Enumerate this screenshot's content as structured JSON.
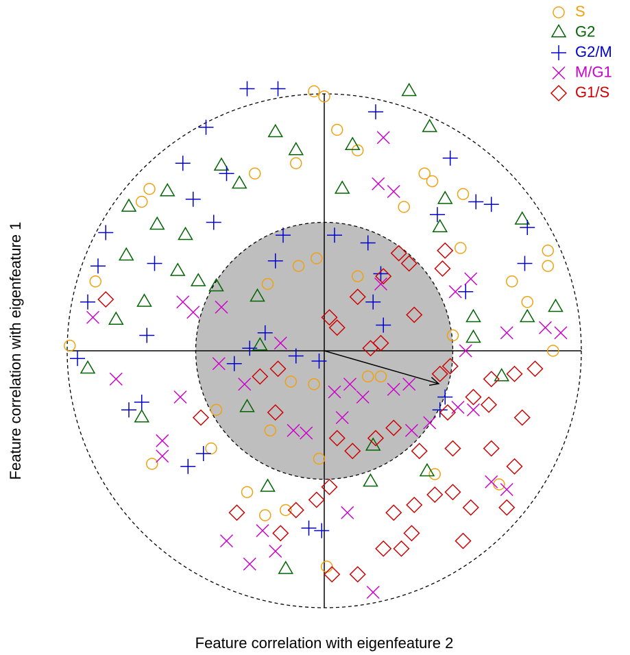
{
  "chart_data": {
    "type": "scatter",
    "x_label": "Feature correlation with eigenfeature 2",
    "y_label": "Feature correlation with eigenfeature 1",
    "xlim": [
      -1.05,
      1.05
    ],
    "ylim": [
      -1.05,
      1.05
    ],
    "outer_radius": 1,
    "inner_radius": 0.5,
    "inner_fill": "#bebebe",
    "arrow": {
      "x": 0.445,
      "y": -0.128
    },
    "legend": "top-right",
    "series": [
      {
        "name": "S",
        "color": "#f0a010",
        "marker": "circle",
        "x": [
          -0.04,
          0.0,
          0.05,
          0.13,
          -0.11,
          -0.27,
          0.39,
          0.42,
          0.54,
          0.31,
          -0.71,
          -0.68,
          0.87,
          0.87,
          0.73,
          0.79,
          0.5,
          0.89,
          -0.99,
          0.17,
          0.22,
          -0.13,
          -0.04,
          -0.42,
          -0.21,
          -0.02,
          -0.44,
          -0.67,
          0.43,
          0.68,
          -0.3,
          -0.23,
          0.01,
          -0.15,
          -0.89,
          -0.22,
          -0.03,
          0.13,
          -0.1,
          0.53
        ],
        "y": [
          1.01,
          0.99,
          0.86,
          0.78,
          0.73,
          0.69,
          0.69,
          0.66,
          0.61,
          0.56,
          0.58,
          0.63,
          0.39,
          0.33,
          0.27,
          0.19,
          0.06,
          0.0,
          0.02,
          -0.1,
          -0.1,
          -0.12,
          -0.13,
          -0.23,
          -0.31,
          -0.42,
          -0.38,
          -0.44,
          -0.48,
          -0.52,
          -0.55,
          -0.64,
          -0.84,
          -0.62,
          0.27,
          0.26,
          0.36,
          0.29,
          0.33,
          0.4
        ]
      },
      {
        "name": "G2",
        "color": "#006400",
        "marker": "triangle",
        "x": [
          0.33,
          0.41,
          -0.19,
          0.11,
          -0.11,
          -0.4,
          -0.33,
          -0.61,
          -0.76,
          -0.77,
          -0.7,
          -0.81,
          -0.92,
          0.77,
          0.9,
          0.58,
          0.58,
          0.79,
          0.69,
          0.19,
          -0.3,
          -0.22,
          0.18,
          -0.15,
          0.4,
          -0.57,
          -0.49,
          -0.65,
          -0.54,
          0.45,
          0.07,
          -0.26,
          -0.42,
          -0.25,
          0.47,
          -0.71
        ],
        "y": [
          1.01,
          0.87,
          0.85,
          0.8,
          0.78,
          0.72,
          0.65,
          0.62,
          0.56,
          0.37,
          0.19,
          0.12,
          -0.07,
          0.51,
          0.17,
          0.13,
          0.05,
          0.13,
          -0.1,
          -0.37,
          -0.22,
          -0.53,
          -0.51,
          -0.85,
          -0.47,
          0.31,
          0.27,
          0.49,
          0.45,
          0.48,
          0.63,
          0.21,
          0.25,
          0.02,
          0.59,
          -0.26
        ]
      },
      {
        "name": "G2/M",
        "color": "#0000cd",
        "marker": "plus",
        "x": [
          -0.18,
          0.2,
          0.49,
          0.59,
          0.65,
          0.44,
          0.79,
          0.78,
          0.55,
          -0.69,
          -0.85,
          -0.88,
          -0.92,
          -0.96,
          -0.76,
          -0.71,
          -0.53,
          -0.47,
          -0.06,
          -0.01,
          0.47,
          0.45,
          -0.11,
          -0.02,
          -0.35,
          -0.29,
          -0.23,
          -0.19,
          -0.16,
          0.04,
          0.17,
          0.22,
          -0.38,
          -0.3,
          -0.46,
          -0.55,
          -0.66,
          -0.51,
          -0.43,
          0.23,
          0.19
        ],
        "y": [
          1.02,
          0.93,
          0.75,
          0.58,
          0.57,
          0.53,
          0.48,
          0.34,
          0.23,
          0.06,
          0.46,
          0.33,
          0.19,
          -0.03,
          -0.23,
          -0.2,
          -0.45,
          -0.4,
          -0.69,
          -0.7,
          -0.18,
          -0.23,
          -0.02,
          -0.04,
          -0.05,
          0.01,
          0.07,
          0.35,
          0.45,
          0.45,
          0.42,
          0.3,
          0.69,
          1.02,
          0.87,
          0.73,
          0.34,
          0.59,
          0.5,
          0.1,
          0.19
        ]
      },
      {
        "name": "M/G1",
        "color": "#cc00cc",
        "marker": "cross",
        "x": [
          0.23,
          0.27,
          0.21,
          -0.9,
          -0.81,
          -0.63,
          -0.63,
          -0.56,
          -0.38,
          -0.29,
          -0.19,
          -0.24,
          0.19,
          0.09,
          0.04,
          0.07,
          0.15,
          0.34,
          0.52,
          0.58,
          0.65,
          0.71,
          0.92,
          0.86,
          0.71,
          0.57,
          0.51,
          0.41,
          -0.12,
          -0.07,
          -0.17,
          -0.31,
          -0.41,
          -0.51,
          -0.55,
          -0.4,
          0.22,
          0.27,
          0.33,
          0.1,
          0.55
        ],
        "y": [
          0.83,
          0.62,
          0.65,
          0.13,
          -0.11,
          -0.35,
          -0.41,
          -0.18,
          -0.74,
          -0.83,
          -0.78,
          -0.7,
          -0.94,
          -0.63,
          -0.16,
          -0.26,
          -0.18,
          -0.31,
          -0.22,
          -0.23,
          -0.51,
          -0.54,
          0.07,
          0.09,
          0.07,
          0.28,
          0.23,
          -0.28,
          -0.31,
          -0.32,
          0.03,
          -0.13,
          -0.05,
          0.15,
          0.19,
          0.17,
          0.26,
          -0.15,
          -0.13,
          -0.13,
          0.0
        ]
      },
      {
        "name": "G1/S",
        "color": "#cc0000",
        "marker": "diamond",
        "x": [
          -0.85,
          0.29,
          0.33,
          0.47,
          0.46,
          0.23,
          0.13,
          0.35,
          0.22,
          0.18,
          0.05,
          0.02,
          0.49,
          0.45,
          0.74,
          0.82,
          0.65,
          0.58,
          0.64,
          0.48,
          0.27,
          0.2,
          0.11,
          0.05,
          -0.19,
          -0.48,
          -0.18,
          -0.25,
          0.37,
          0.5,
          0.65,
          0.74,
          0.77,
          0.5,
          0.57,
          0.71,
          0.34,
          0.23,
          0.3,
          0.54,
          0.03,
          0.13,
          -0.34,
          -0.17,
          -0.11,
          -0.03,
          0.02,
          0.27,
          0.35,
          0.43
        ],
        "y": [
          0.2,
          0.38,
          0.34,
          0.39,
          0.32,
          0.29,
          0.21,
          0.14,
          0.03,
          0.01,
          0.09,
          0.13,
          -0.06,
          -0.09,
          -0.09,
          -0.07,
          -0.11,
          -0.18,
          -0.21,
          -0.24,
          -0.3,
          -0.34,
          -0.39,
          -0.34,
          -0.24,
          -0.26,
          -0.07,
          -0.1,
          -0.39,
          -0.38,
          -0.38,
          -0.45,
          -0.26,
          -0.55,
          -0.61,
          -0.61,
          -0.71,
          -0.77,
          -0.77,
          -0.74,
          -0.87,
          -0.87,
          -0.63,
          -0.71,
          -0.62,
          -0.58,
          -0.53,
          -0.63,
          -0.6,
          -0.56
        ]
      }
    ]
  }
}
